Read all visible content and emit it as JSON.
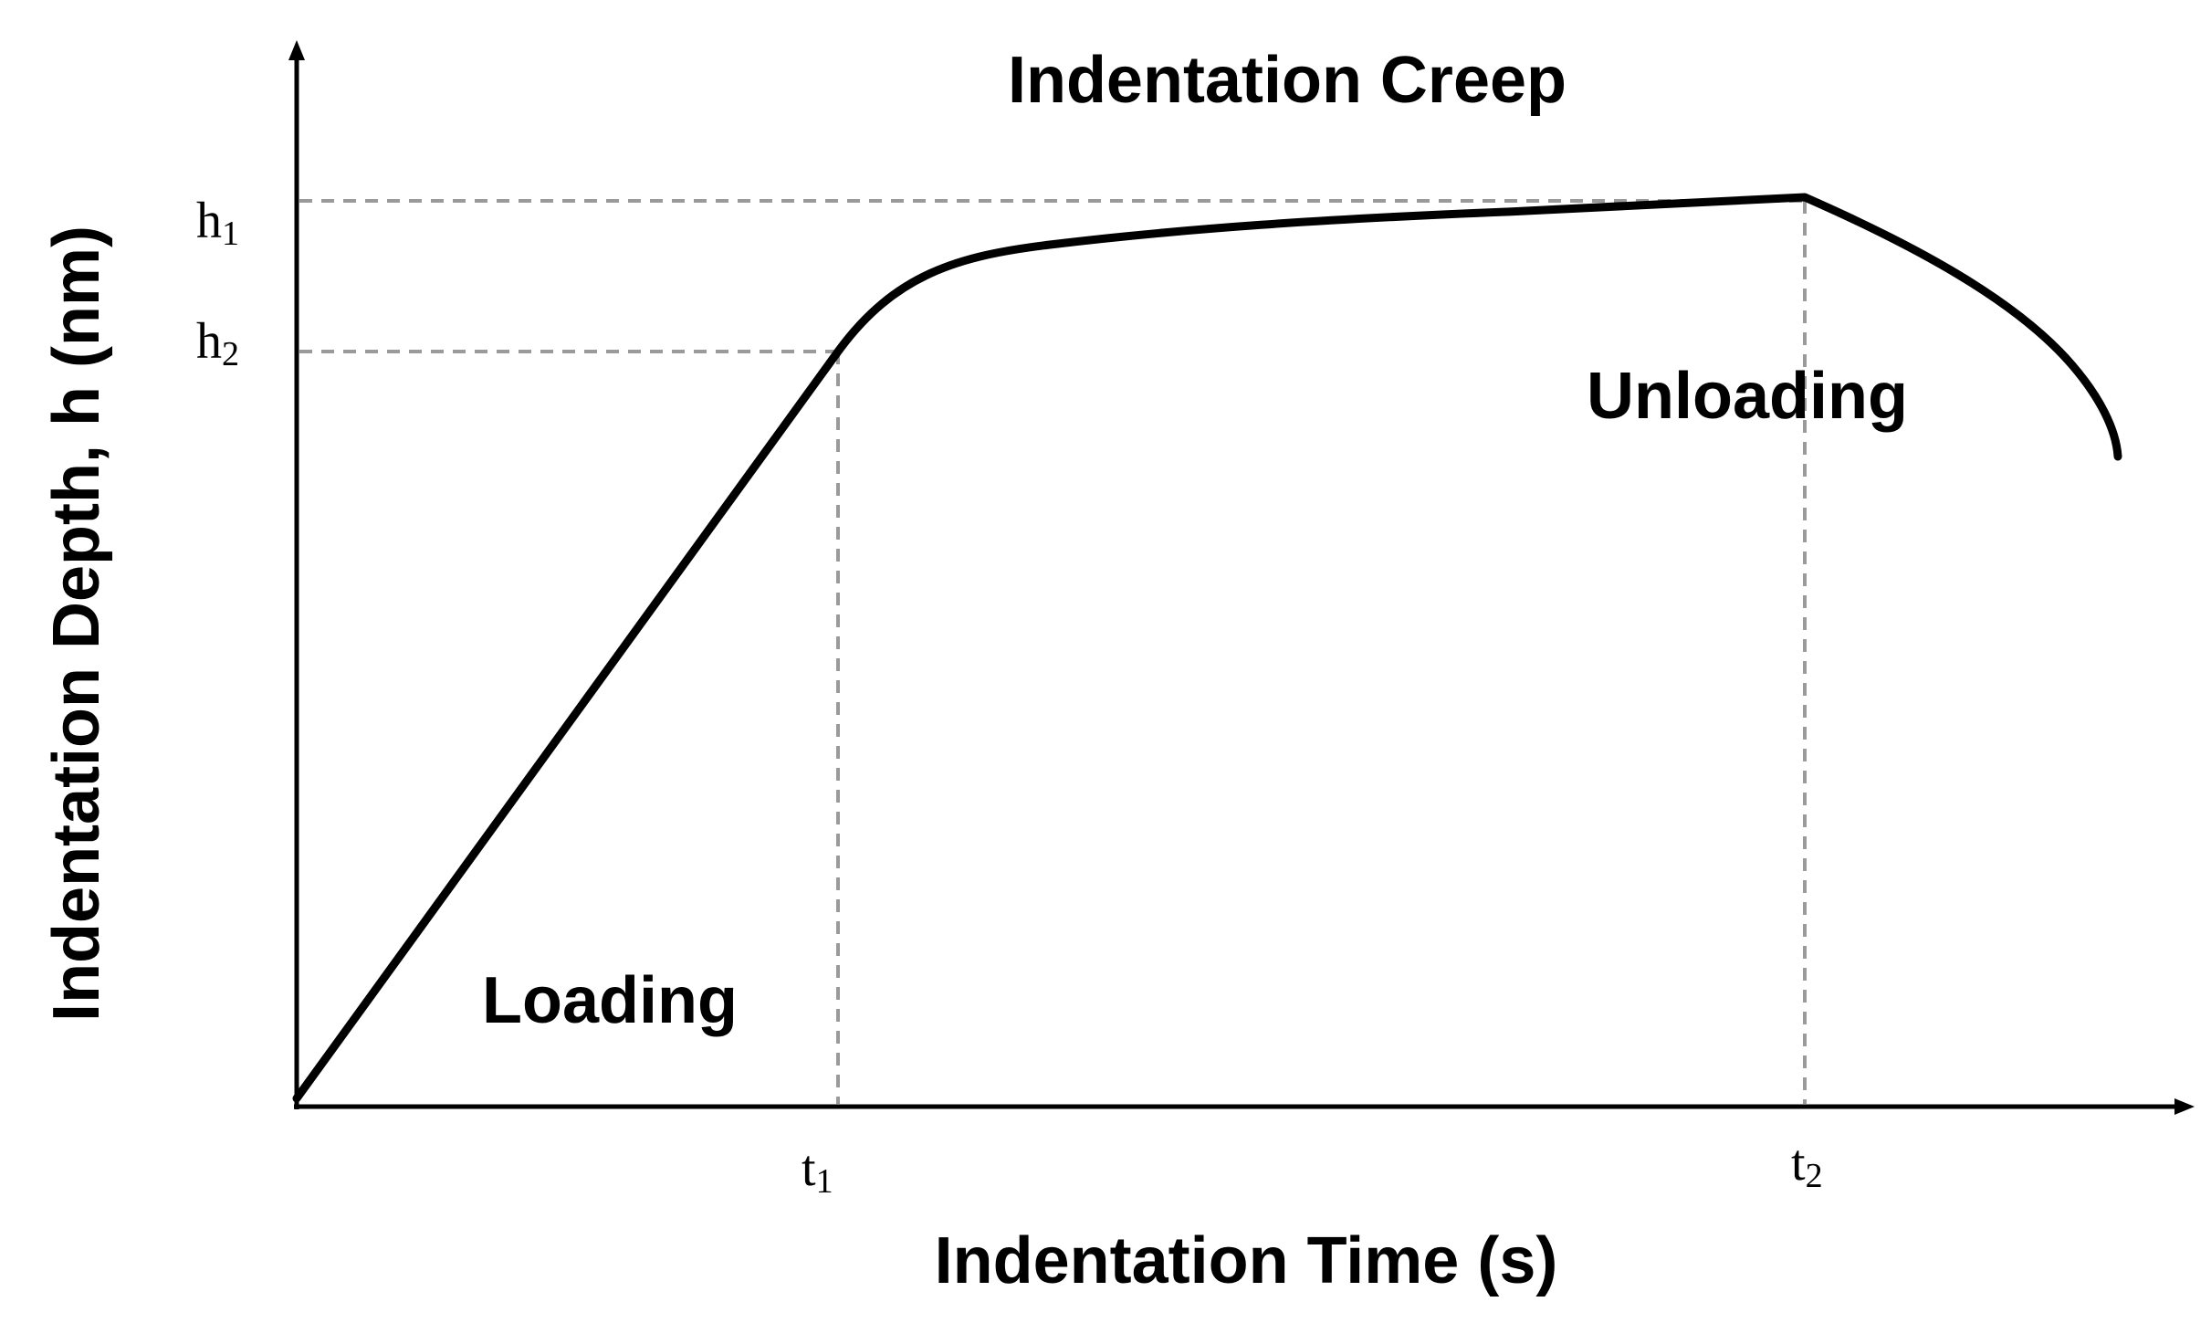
{
  "chart_data": {
    "type": "line",
    "title": "Indentation Creep",
    "xlabel": "Indentation Time (s)",
    "ylabel": "Indentation Depth, h (nm)",
    "x_ticks": [
      {
        "base": "t",
        "sub": "1"
      },
      {
        "base": "t",
        "sub": "2"
      }
    ],
    "y_ticks": [
      {
        "base": "h",
        "sub": "1"
      },
      {
        "base": "h",
        "sub": "2"
      }
    ],
    "annotations": {
      "loading": "Loading",
      "unloading": "Unloading"
    },
    "grid": false,
    "reference_lines": "dashed",
    "colors": {
      "curve": "#000000",
      "reference": "#9a9a9a",
      "ylabel": "#3b1a0a"
    }
  }
}
